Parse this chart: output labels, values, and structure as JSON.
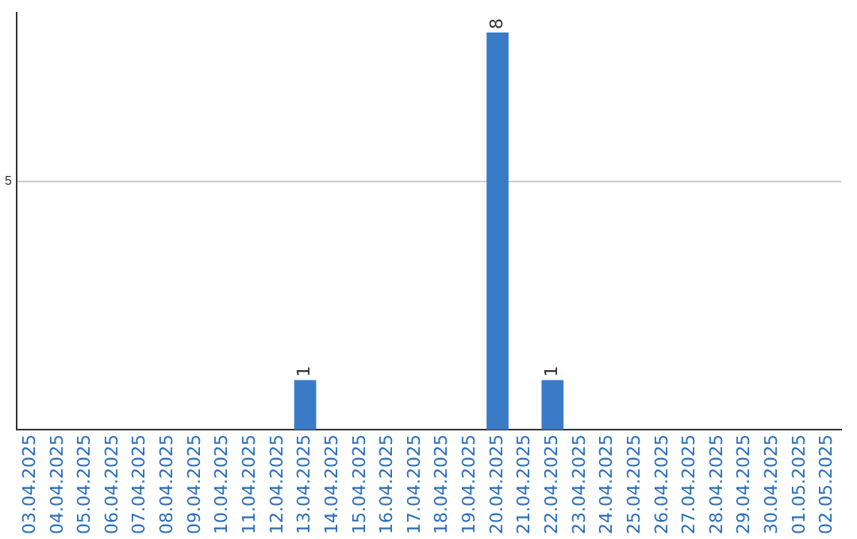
{
  "chart_data": {
    "type": "bar",
    "categories": [
      "03.04.2025",
      "04.04.2025",
      "05.04.2025",
      "06.04.2025",
      "07.04.2025",
      "08.04.2025",
      "09.04.2025",
      "10.04.2025",
      "11.04.2025",
      "12.04.2025",
      "13.04.2025",
      "14.04.2025",
      "15.04.2025",
      "16.04.2025",
      "17.04.2025",
      "18.04.2025",
      "19.04.2025",
      "20.04.2025",
      "21.04.2025",
      "22.04.2025",
      "23.04.2025",
      "24.04.2025",
      "25.04.2025",
      "26.04.2025",
      "27.04.2025",
      "28.04.2025",
      "29.04.2025",
      "30.04.2025",
      "01.05.2025",
      "02.05.2025"
    ],
    "values": [
      0,
      0,
      0,
      0,
      0,
      0,
      0,
      0,
      0,
      0,
      1,
      0,
      0,
      0,
      0,
      0,
      0,
      8,
      0,
      1,
      0,
      0,
      0,
      0,
      0,
      0,
      0,
      0,
      0,
      0
    ],
    "color": "#3a7bc8",
    "ylim": [
      0,
      8.4
    ],
    "yticks": [
      5
    ],
    "grid": "y",
    "value_labels": [
      null,
      null,
      null,
      null,
      null,
      null,
      null,
      null,
      null,
      null,
      "1",
      null,
      null,
      null,
      null,
      null,
      null,
      "8",
      null,
      "1",
      null,
      null,
      null,
      null,
      null,
      null,
      null,
      null,
      null,
      null
    ],
    "legend": false
  }
}
